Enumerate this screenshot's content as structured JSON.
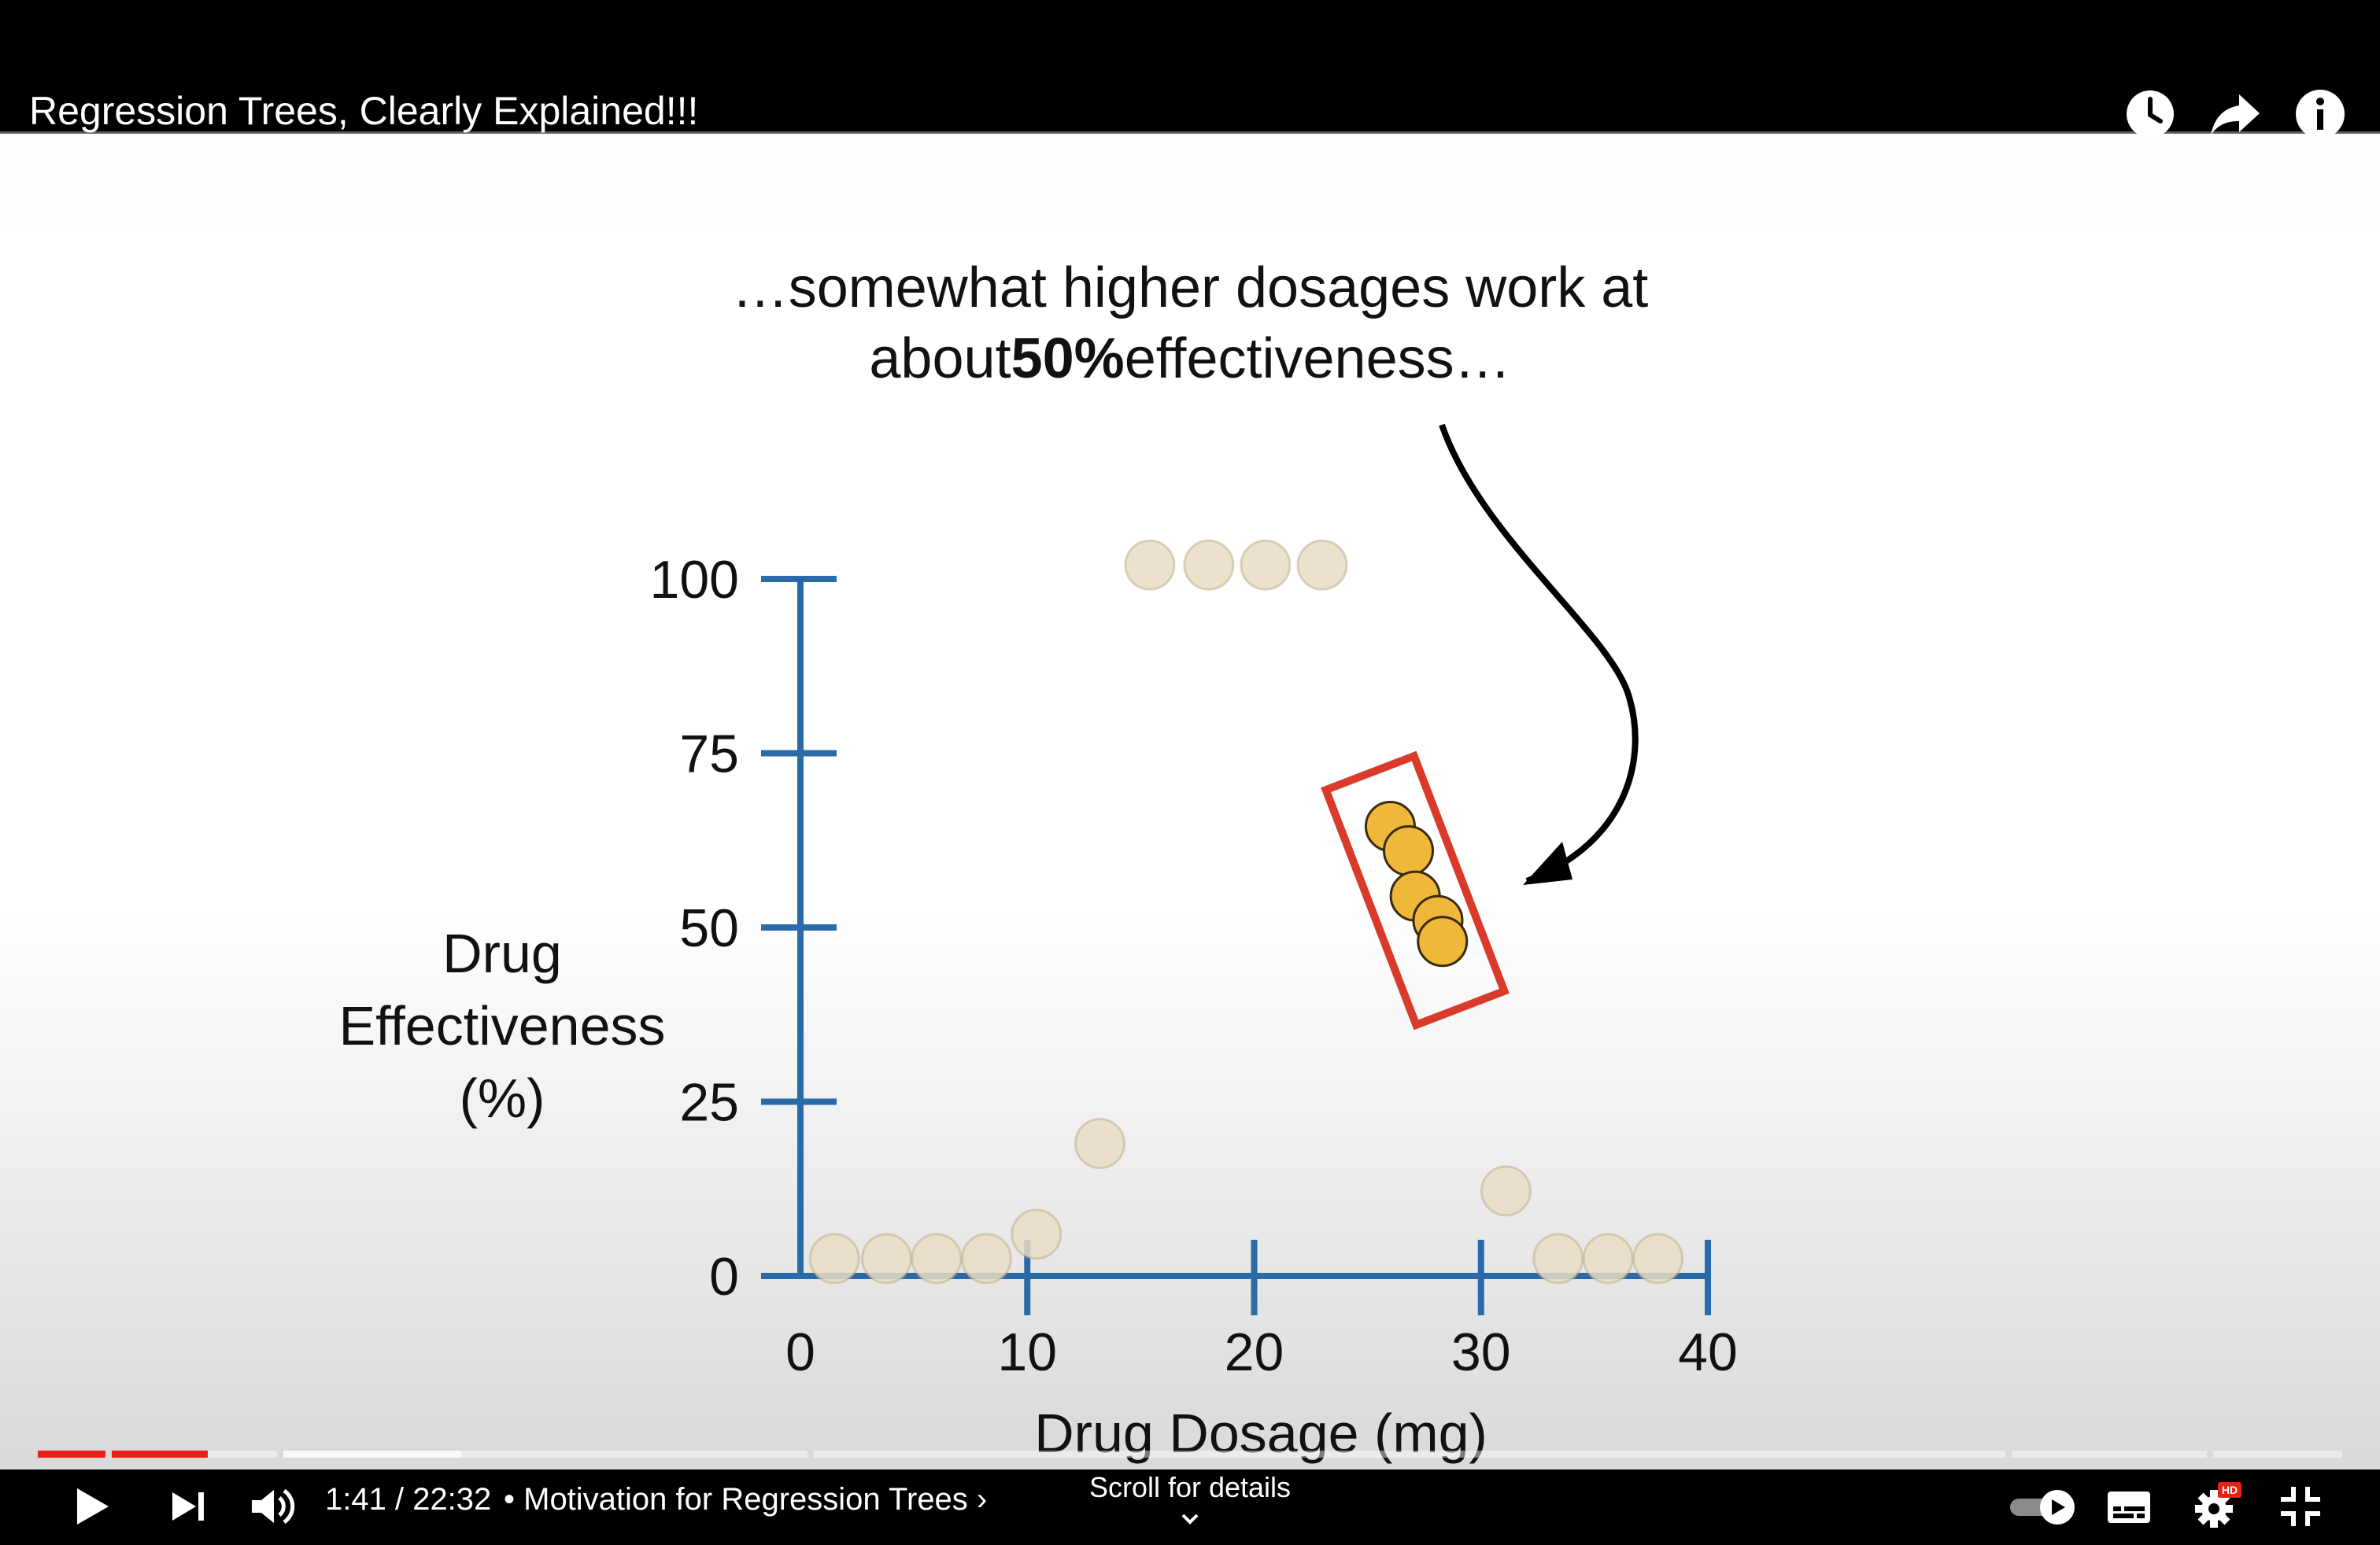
{
  "video": {
    "title": "Regression Trees, Clearly Explained!!!"
  },
  "slide": {
    "caption_line1": "…somewhat higher dosages work at",
    "caption_line2_pre": "about ",
    "caption_line2_bold": "50%",
    "caption_line2_post": " effectiveness…"
  },
  "chart_data": {
    "type": "scatter",
    "xlabel": "Drug Dosage (mg)",
    "ylabel_lines": [
      "Drug",
      "Effectiveness",
      "(%)"
    ],
    "xlim": [
      0,
      40
    ],
    "ylim": [
      0,
      100
    ],
    "x_ticks": [
      0,
      10,
      20,
      30,
      40
    ],
    "y_ticks": [
      0,
      25,
      50,
      75,
      100
    ],
    "axis_color": "#2a6aa8",
    "points_faded": [
      {
        "x": 1.5,
        "y": 2.5
      },
      {
        "x": 3.8,
        "y": 2.5
      },
      {
        "x": 6,
        "y": 2.5
      },
      {
        "x": 8.2,
        "y": 2.5
      },
      {
        "x": 10.4,
        "y": 6
      },
      {
        "x": 13.2,
        "y": 19
      },
      {
        "x": 15.4,
        "y": 102
      },
      {
        "x": 18,
        "y": 102
      },
      {
        "x": 20.5,
        "y": 102
      },
      {
        "x": 23,
        "y": 102
      },
      {
        "x": 31.1,
        "y": 12.2
      },
      {
        "x": 33.4,
        "y": 2.5
      },
      {
        "x": 35.6,
        "y": 2.5
      },
      {
        "x": 37.8,
        "y": 2.5
      }
    ],
    "points_highlighted": [
      {
        "x": 26,
        "y": 64.5
      },
      {
        "x": 26.8,
        "y": 61
      },
      {
        "x": 27.1,
        "y": 54.5
      },
      {
        "x": 28.1,
        "y": 51
      },
      {
        "x": 28.3,
        "y": 48
      }
    ],
    "faded_color": "#e8ddc4",
    "highlight_color": "#f0b83a",
    "box_color": "#d93a2a"
  },
  "controls": {
    "time_current": "1:41",
    "time_total": "22:32",
    "time_text": "1:41 / 22:32",
    "chapter_text": "• Motivation for Regression Trees ›",
    "scroll_hint": "Scroll for details",
    "progress_played": 0.074
  },
  "icons": {
    "top": [
      "watch-later-icon",
      "share-icon",
      "info-icon"
    ],
    "bottom": [
      "play-icon",
      "next-icon",
      "volume-icon",
      "autoplay-toggle-icon",
      "subtitles-icon",
      "settings-icon",
      "exit-fullscreen-icon"
    ],
    "settings_badge": "HD"
  }
}
